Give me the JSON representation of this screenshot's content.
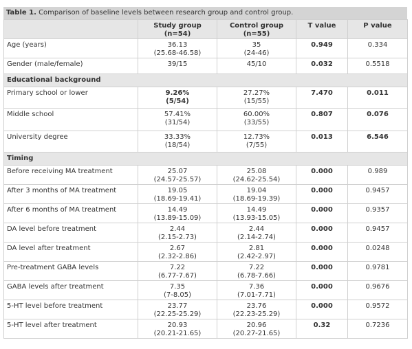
{
  "caption": {
    "label": "Table 1.",
    "text": "Comparison of baseline levels between research group and control group."
  },
  "header": [
    [
      "Study group",
      "(n=54)"
    ],
    [
      "Control group",
      "(n=55)"
    ],
    [
      "T value"
    ],
    [
      "P value"
    ]
  ],
  "rows": [
    {
      "label": "Age (years)",
      "study": [
        "36.13",
        "(25.68-46.58)"
      ],
      "control": [
        "35",
        "(24-46)"
      ],
      "t": "0.949",
      "p": "0.334",
      "bold": [
        "t"
      ]
    },
    {
      "label": "Gender (male/female)",
      "study": [
        "39/15"
      ],
      "control": [
        "45/10"
      ],
      "t": "0.032",
      "p": "0.5518",
      "bold": [
        "t"
      ]
    },
    {
      "section": "Educational background"
    },
    {
      "label": "Primary school or lower",
      "study": [
        "9.26%",
        "(5/54)"
      ],
      "control": [
        "27.27%",
        "(15/55)"
      ],
      "t": "7.470",
      "p": "0.011",
      "bold": [
        "study",
        "t",
        "p"
      ]
    },
    {
      "label": "Middle school",
      "study": [
        "57.41%",
        "(31/54)"
      ],
      "control": [
        "60.00%",
        "(33/55)"
      ],
      "t": "0.807",
      "p": "0.076",
      "bold": [
        "t",
        "p"
      ]
    },
    {
      "label": "University degree",
      "study": [
        "33.33%",
        "(18/54)"
      ],
      "control": [
        "12.73%",
        "(7/55)"
      ],
      "t": "0.013",
      "p": "6.546",
      "bold": [
        "t",
        "p"
      ]
    },
    {
      "section": "Timing"
    },
    {
      "label": "Before receiving MA treatment",
      "study": [
        "25.07",
        "(24.57-25.57)"
      ],
      "control": [
        "25.08",
        "(24.62-25.54)"
      ],
      "t": "0.000",
      "p": "0.989",
      "bold": [
        "t"
      ]
    },
    {
      "label": "After 3 months of MA treatment",
      "study": [
        "19.05",
        "(18.69-19.41)"
      ],
      "control": [
        "19.04",
        "(18.69-19.39)"
      ],
      "t": "0.000",
      "p": "0.9457",
      "bold": [
        "t"
      ]
    },
    {
      "label": "After 6 months of MA treatment",
      "study": [
        "14.49",
        "(13.89-15.09)"
      ],
      "control": [
        "14.49",
        "(13.93-15.05)"
      ],
      "t": "0.000",
      "p": "0.9357",
      "bold": [
        "t"
      ]
    },
    {
      "label": "DA level before treatment",
      "study": [
        "2.44",
        "(2.15-2.73)"
      ],
      "control": [
        "2.44",
        "(2.14-2.74)"
      ],
      "t": "0.000",
      "p": "0.9457",
      "bold": [
        "t"
      ]
    },
    {
      "label": "DA level after treatment",
      "study": [
        "2.67",
        "(2.32-2.86)"
      ],
      "control": [
        "2.81",
        "(2.42-2.97)"
      ],
      "t": "0.000",
      "p": "0.0248",
      "bold": [
        "t"
      ]
    },
    {
      "label": "Pre-treatment GABA levels",
      "study": [
        "7.22",
        "(6.77-7.67)"
      ],
      "control": [
        "7.22",
        "(6.78-7.66)"
      ],
      "t": "0.000",
      "p": "0.9781",
      "bold": [
        "t"
      ]
    },
    {
      "label": "GABA levels after treatment",
      "study": [
        "7.35",
        "(7-8.05)"
      ],
      "control": [
        "7.36",
        "(7.01-7.71)"
      ],
      "t": "0.000",
      "p": "0.9676",
      "bold": [
        "t"
      ]
    },
    {
      "label": "5-HT level before treatment",
      "study": [
        "23.77",
        "(22.25-25.29)"
      ],
      "control": [
        "23.76",
        "(22.23-25.29)"
      ],
      "t": "0.000",
      "p": "0.9572",
      "bold": [
        "t"
      ]
    },
    {
      "label": "5-HT level after treatment",
      "study": [
        "20.93",
        "(20.21-21.65)"
      ],
      "control": [
        "20.96",
        "(20.27-21.65)"
      ],
      "t": "0.32",
      "p": "0.7236",
      "bold": [
        "t"
      ]
    }
  ]
}
